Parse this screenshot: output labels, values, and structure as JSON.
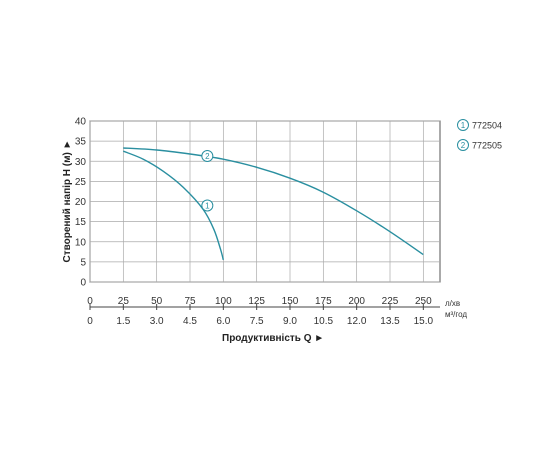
{
  "chart_data": {
    "type": "line",
    "ylabel": "Створений напір H (м) ►",
    "xlabel": "Продуктивність  Q  ►",
    "ylim": [
      0,
      40
    ],
    "yticks": [
      "0",
      "5",
      "10",
      "15",
      "20",
      "25",
      "30",
      "35",
      "40"
    ],
    "xlim": [
      0,
      262.5
    ],
    "x_primary_ticks": [
      "0",
      "25",
      "50",
      "75",
      "100",
      "125",
      "150",
      "175",
      "200",
      "225",
      "250"
    ],
    "x_primary_unit": "л/хв",
    "x_secondary_ticks": [
      "0",
      "1.5",
      "3.0",
      "4.5",
      "6.0",
      "7.5",
      "9.0",
      "10.5",
      "12.0",
      "13.5",
      "15.0"
    ],
    "x_secondary_unit": "м³/год",
    "grid": true,
    "legend": "top-right",
    "color": "#2a8fa0",
    "series": [
      {
        "name": "772504",
        "marker": "1",
        "marker_at": {
          "x": 88,
          "y": 19
        },
        "points": [
          [
            25,
            32.5
          ],
          [
            40,
            30.5
          ],
          [
            55,
            27.5
          ],
          [
            70,
            23.5
          ],
          [
            85,
            18
          ],
          [
            93,
            13
          ],
          [
            98,
            8
          ],
          [
            100,
            5.5
          ]
        ]
      },
      {
        "name": "772505",
        "marker": "2",
        "marker_at": {
          "x": 88,
          "y": 31.3
        },
        "points": [
          [
            25,
            33.3
          ],
          [
            50,
            32.8
          ],
          [
            75,
            31.8
          ],
          [
            100,
            30.5
          ],
          [
            125,
            28.5
          ],
          [
            150,
            25.8
          ],
          [
            175,
            22.3
          ],
          [
            200,
            17.7
          ],
          [
            225,
            12.5
          ],
          [
            250,
            6.8
          ]
        ]
      }
    ]
  }
}
